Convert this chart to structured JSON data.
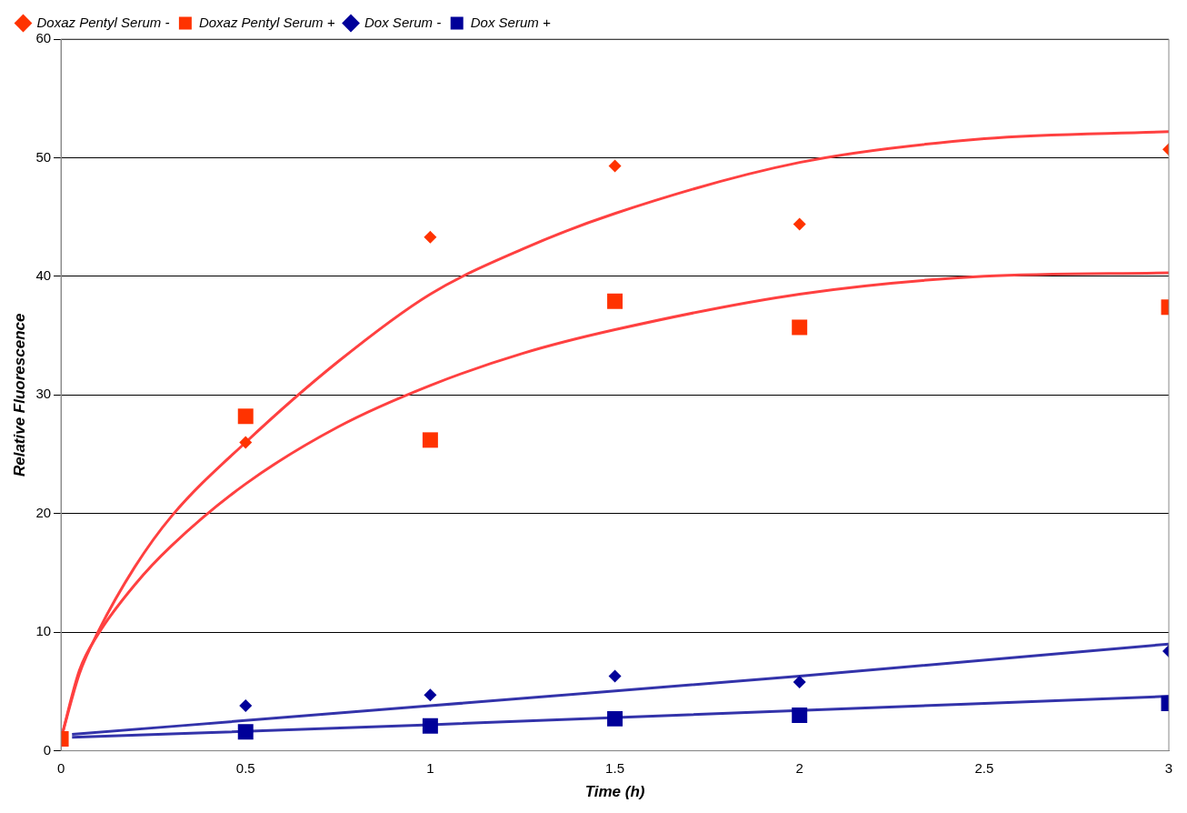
{
  "chart_data": {
    "type": "scatter",
    "xlabel": "Time (h)",
    "ylabel": "Relative Fluorescence",
    "xlim": [
      0,
      3
    ],
    "xticks": [
      0,
      0.5,
      1,
      1.5,
      2,
      2.5,
      3
    ],
    "ylim": [
      0,
      60
    ],
    "yticks": [
      0,
      10,
      20,
      30,
      40,
      50,
      60
    ],
    "grid": "y",
    "legend": "top left",
    "series": [
      {
        "name": "Doxaz Pentyl Serum -",
        "color": "#ff3300",
        "marker": "diamond",
        "x": [
          0.5,
          1,
          1.5,
          2,
          3
        ],
        "values": [
          26,
          43.3,
          49.3,
          44.4,
          50.7
        ]
      },
      {
        "name": "Doxaz Pentyl Serum +",
        "color": "#ff3300",
        "marker": "square",
        "x": [
          0,
          0.5,
          1,
          1.5,
          2,
          3
        ],
        "values": [
          1,
          28.2,
          26.2,
          37.9,
          35.7,
          37.4
        ]
      },
      {
        "name": "Dox Serum -",
        "color": "#000099",
        "marker": "diamond",
        "x": [
          0.5,
          1,
          1.5,
          2,
          3
        ],
        "values": [
          3.8,
          4.7,
          6.3,
          5.8,
          8.4
        ]
      },
      {
        "name": "Dox Serum +",
        "color": "#000099",
        "marker": "square",
        "x": [
          0.5,
          1,
          1.5,
          2,
          3
        ],
        "values": [
          1.6,
          2.1,
          2.7,
          3,
          4
        ]
      },
      {
        "type": "line",
        "color": "#ff4040",
        "marker": "none",
        "x": [
          0,
          0.05,
          0.1,
          0.2,
          0.3,
          0.5,
          0.75,
          1,
          1.25,
          1.5,
          2,
          2.5,
          3
        ],
        "values": [
          1,
          6.5,
          10,
          15.5,
          19.8,
          26,
          32.8,
          38.5,
          42.3,
          45.3,
          49.6,
          51.6,
          52.2
        ]
      },
      {
        "type": "line",
        "color": "#ff4040",
        "marker": "none",
        "x": [
          0,
          0.05,
          0.1,
          0.2,
          0.3,
          0.5,
          0.75,
          1,
          1.25,
          1.5,
          2,
          2.5,
          3
        ],
        "values": [
          1,
          6.8,
          9.8,
          14,
          17.3,
          22.5,
          27.3,
          30.8,
          33.5,
          35.5,
          38.5,
          40,
          40.3
        ]
      },
      {
        "type": "line",
        "color": "#3333aa",
        "marker": "none",
        "x": [
          0.03,
          1,
          2,
          3
        ],
        "values": [
          1.38,
          3.8,
          6.3,
          9
        ]
      },
      {
        "type": "line",
        "color": "#3333aa",
        "marker": "none",
        "x": [
          0.03,
          1,
          2,
          3
        ],
        "values": [
          1.13,
          2.2,
          3.4,
          4.6
        ]
      }
    ]
  }
}
